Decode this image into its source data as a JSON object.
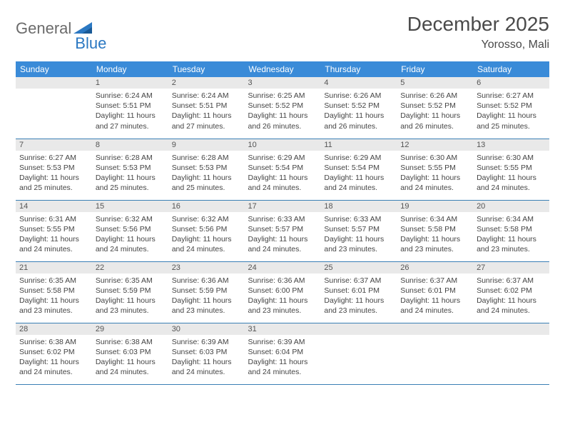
{
  "logo": {
    "text_general": "General",
    "text_blue": "Blue"
  },
  "colors": {
    "header_bg": "#3a8bd8",
    "header_fg": "#ffffff",
    "daynum_bg": "#e9e9e9",
    "row_divider": "#3a7fb5",
    "logo_gray": "#6b6b6b",
    "logo_blue": "#2b78c2",
    "body_text": "#444444"
  },
  "title": {
    "month": "December 2025",
    "location": "Yorosso, Mali"
  },
  "weekdays": [
    "Sunday",
    "Monday",
    "Tuesday",
    "Wednesday",
    "Thursday",
    "Friday",
    "Saturday"
  ],
  "first_weekday_index": 1,
  "days": [
    {
      "n": 1,
      "sunrise": "6:24 AM",
      "sunset": "5:51 PM",
      "daylight": "11 hours and 27 minutes."
    },
    {
      "n": 2,
      "sunrise": "6:24 AM",
      "sunset": "5:51 PM",
      "daylight": "11 hours and 27 minutes."
    },
    {
      "n": 3,
      "sunrise": "6:25 AM",
      "sunset": "5:52 PM",
      "daylight": "11 hours and 26 minutes."
    },
    {
      "n": 4,
      "sunrise": "6:26 AM",
      "sunset": "5:52 PM",
      "daylight": "11 hours and 26 minutes."
    },
    {
      "n": 5,
      "sunrise": "6:26 AM",
      "sunset": "5:52 PM",
      "daylight": "11 hours and 26 minutes."
    },
    {
      "n": 6,
      "sunrise": "6:27 AM",
      "sunset": "5:52 PM",
      "daylight": "11 hours and 25 minutes."
    },
    {
      "n": 7,
      "sunrise": "6:27 AM",
      "sunset": "5:53 PM",
      "daylight": "11 hours and 25 minutes."
    },
    {
      "n": 8,
      "sunrise": "6:28 AM",
      "sunset": "5:53 PM",
      "daylight": "11 hours and 25 minutes."
    },
    {
      "n": 9,
      "sunrise": "6:28 AM",
      "sunset": "5:53 PM",
      "daylight": "11 hours and 25 minutes."
    },
    {
      "n": 10,
      "sunrise": "6:29 AM",
      "sunset": "5:54 PM",
      "daylight": "11 hours and 24 minutes."
    },
    {
      "n": 11,
      "sunrise": "6:29 AM",
      "sunset": "5:54 PM",
      "daylight": "11 hours and 24 minutes."
    },
    {
      "n": 12,
      "sunrise": "6:30 AM",
      "sunset": "5:55 PM",
      "daylight": "11 hours and 24 minutes."
    },
    {
      "n": 13,
      "sunrise": "6:30 AM",
      "sunset": "5:55 PM",
      "daylight": "11 hours and 24 minutes."
    },
    {
      "n": 14,
      "sunrise": "6:31 AM",
      "sunset": "5:55 PM",
      "daylight": "11 hours and 24 minutes."
    },
    {
      "n": 15,
      "sunrise": "6:32 AM",
      "sunset": "5:56 PM",
      "daylight": "11 hours and 24 minutes."
    },
    {
      "n": 16,
      "sunrise": "6:32 AM",
      "sunset": "5:56 PM",
      "daylight": "11 hours and 24 minutes."
    },
    {
      "n": 17,
      "sunrise": "6:33 AM",
      "sunset": "5:57 PM",
      "daylight": "11 hours and 24 minutes."
    },
    {
      "n": 18,
      "sunrise": "6:33 AM",
      "sunset": "5:57 PM",
      "daylight": "11 hours and 23 minutes."
    },
    {
      "n": 19,
      "sunrise": "6:34 AM",
      "sunset": "5:58 PM",
      "daylight": "11 hours and 23 minutes."
    },
    {
      "n": 20,
      "sunrise": "6:34 AM",
      "sunset": "5:58 PM",
      "daylight": "11 hours and 23 minutes."
    },
    {
      "n": 21,
      "sunrise": "6:35 AM",
      "sunset": "5:58 PM",
      "daylight": "11 hours and 23 minutes."
    },
    {
      "n": 22,
      "sunrise": "6:35 AM",
      "sunset": "5:59 PM",
      "daylight": "11 hours and 23 minutes."
    },
    {
      "n": 23,
      "sunrise": "6:36 AM",
      "sunset": "5:59 PM",
      "daylight": "11 hours and 23 minutes."
    },
    {
      "n": 24,
      "sunrise": "6:36 AM",
      "sunset": "6:00 PM",
      "daylight": "11 hours and 23 minutes."
    },
    {
      "n": 25,
      "sunrise": "6:37 AM",
      "sunset": "6:01 PM",
      "daylight": "11 hours and 23 minutes."
    },
    {
      "n": 26,
      "sunrise": "6:37 AM",
      "sunset": "6:01 PM",
      "daylight": "11 hours and 24 minutes."
    },
    {
      "n": 27,
      "sunrise": "6:37 AM",
      "sunset": "6:02 PM",
      "daylight": "11 hours and 24 minutes."
    },
    {
      "n": 28,
      "sunrise": "6:38 AM",
      "sunset": "6:02 PM",
      "daylight": "11 hours and 24 minutes."
    },
    {
      "n": 29,
      "sunrise": "6:38 AM",
      "sunset": "6:03 PM",
      "daylight": "11 hours and 24 minutes."
    },
    {
      "n": 30,
      "sunrise": "6:39 AM",
      "sunset": "6:03 PM",
      "daylight": "11 hours and 24 minutes."
    },
    {
      "n": 31,
      "sunrise": "6:39 AM",
      "sunset": "6:04 PM",
      "daylight": "11 hours and 24 minutes."
    }
  ],
  "labels": {
    "sunrise": "Sunrise:",
    "sunset": "Sunset:",
    "daylight": "Daylight:"
  }
}
